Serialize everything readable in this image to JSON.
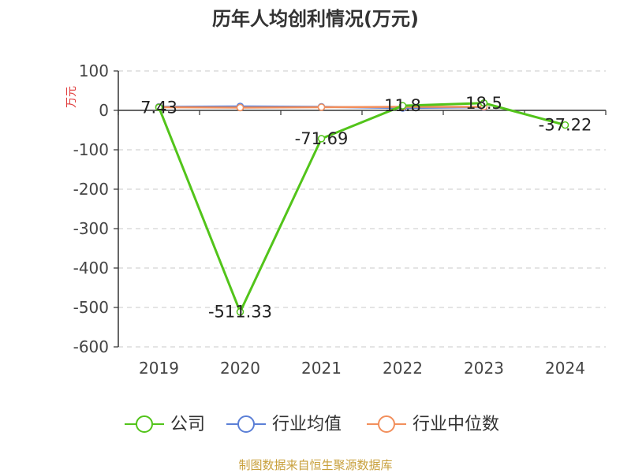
{
  "chart_data": {
    "type": "line",
    "title": "历年人均创利情况(万元)",
    "ylabel": "万元",
    "categories": [
      "2019",
      "2020",
      "2021",
      "2022",
      "2023",
      "2024"
    ],
    "ylim": [
      -600,
      100
    ],
    "yticks": [
      100,
      0,
      -100,
      -200,
      -300,
      -400,
      -500,
      -600
    ],
    "grid": true,
    "legend_position": "bottom",
    "series": [
      {
        "name": "公司",
        "color": "#52c41a",
        "values": [
          7.43,
          -511.33,
          -71.69,
          11.8,
          18.5,
          -37.22
        ],
        "labels": [
          "7.43",
          "-511.33",
          "-71.69",
          "11.8",
          "18.5",
          "-37.22"
        ]
      },
      {
        "name": "行业均值",
        "color": "#5b7fd6",
        "values": [
          9,
          10,
          9,
          6,
          8,
          null
        ]
      },
      {
        "name": "行业中位数",
        "color": "#f28f5c",
        "values": [
          8,
          7,
          8,
          9,
          9,
          null
        ]
      }
    ],
    "footer": "制图数据来自恒生聚源数据库"
  }
}
